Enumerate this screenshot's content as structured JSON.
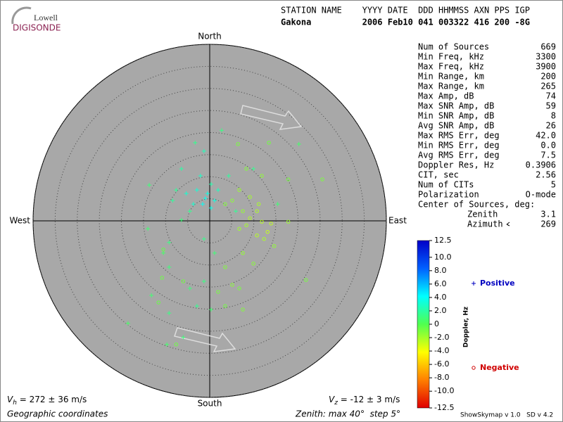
{
  "logo": {
    "top": "Lowell",
    "bottom": "DIGISONDE"
  },
  "header": {
    "line1": "STATION NAME    YYYY DATE  DDD HHMMSS AXN PPS IGP",
    "line2": "Gakona          2006 Feb10 041 003322 416 200 -8G"
  },
  "chart_data": {
    "type": "skymap",
    "directions": {
      "north": "North",
      "south": "South",
      "east": "East",
      "west": "West"
    },
    "rlim": [
      0,
      40
    ],
    "rticks": [
      5,
      10,
      15,
      20,
      25,
      30,
      35,
      40
    ],
    "colorbar": {
      "label": "Doppler, Hz",
      "lim": [
        -12.5,
        12.5
      ],
      "colormap": [
        "#e00000",
        "#ff7f00",
        "#ffff00",
        "#50ff50",
        "#00ffff",
        "#0060ff",
        "#0000c8"
      ],
      "ticks": [
        12.5,
        {
          "value": 10,
          "label": "10.0"
        },
        {
          "value": 8,
          "label": "8.0"
        },
        {
          "value": 6,
          "label": "6.0"
        },
        {
          "value": 4,
          "label": "4.0"
        },
        {
          "value": 2,
          "label": "2.0"
        },
        0,
        {
          "value": -2,
          "label": "-2.0"
        },
        {
          "value": -4,
          "label": "-4.0"
        },
        {
          "value": -6,
          "label": "-6.0"
        },
        {
          "value": -8,
          "label": "-8.0"
        },
        {
          "value": -10,
          "label": "-10.0"
        },
        -12.5
      ]
    },
    "series": [
      {
        "name": "Positive",
        "marker": "plus",
        "color": "#0000c0",
        "x": [
          2.7,
          -3.3,
          -1.3,
          -6.4,
          -13.7,
          -8.4,
          -5.3,
          -2.9,
          -0.5,
          0.3,
          -2.1,
          -4.5,
          -6.4,
          -14,
          -9.2,
          -10.5,
          -9.2,
          -13.2,
          -9.2,
          -18.5,
          -9.7,
          -6,
          -2.9,
          0.3,
          -1.3,
          -4.5,
          1.1,
          -1.3,
          4.3,
          9.9,
          20.2,
          15.4,
          5.9,
          0.3,
          -1,
          1.1,
          -1.6,
          1.9,
          -3.7,
          -7.6
        ],
        "y": [
          20.5,
          17.7,
          15.8,
          11.8,
          8.1,
          4.6,
          6.2,
          7,
          6.2,
          8.3,
          10.2,
          2.2,
          0.2,
          -1.8,
          -4.9,
          -7.3,
          -10.5,
          -16.9,
          -20.9,
          -23.2,
          -28,
          -26.4,
          -19.3,
          -20.1,
          -13.7,
          -15.3,
          -7.3,
          -4.1,
          10.2,
          11.8,
          17.4,
          3.8,
          2.2,
          2.9,
          5.1,
          4.6,
          3.8,
          7,
          3.8,
          7
        ],
        "doppler": [
          1.2,
          1.5,
          2.5,
          2,
          1,
          1.8,
          3,
          3.2,
          3.5,
          2.2,
          2.8,
          1.5,
          1,
          0.8,
          1.2,
          0.6,
          1,
          0.8,
          1.2,
          0.5,
          0.7,
          1,
          1.5,
          0.8,
          1.2,
          1,
          0.9,
          1.4,
          1.8,
          1.5,
          0.6,
          0.9,
          1.6,
          3.6,
          3.8,
          3.4,
          3.9,
          2.6,
          3,
          1.7
        ]
      },
      {
        "name": "Negative",
        "marker": "circle",
        "color": "#d00000",
        "x": [
          6.4,
          13.4,
          8.3,
          11.8,
          17.8,
          25.5,
          6.7,
          9.1,
          10.7,
          11.8,
          13.1,
          10.7,
          8.3,
          7.5,
          5.1,
          3.5,
          13.9,
          12.3,
          17.8,
          14.6,
          7.5,
          9.9,
          3.5,
          5.1,
          6.7,
          7.5,
          1.9,
          3.5,
          -7.6,
          -11.6,
          -6,
          -10.5,
          -10.8,
          21.8,
          9.1,
          6.7,
          11.1
        ],
        "y": [
          17.4,
          17.7,
          11.8,
          10.2,
          9.4,
          9.4,
          7,
          5.4,
          2.2,
          -0.2,
          -2.5,
          -3.3,
          -1,
          2.2,
          4.6,
          3.8,
          -0.6,
          -4.1,
          -0.2,
          -5.7,
          -7.3,
          -9.7,
          -10.5,
          -14.5,
          -15.3,
          -20.1,
          -16.1,
          -19.3,
          -28,
          -18.5,
          -13.7,
          -6.5,
          -12.9,
          -13.4,
          0.6,
          -1.8,
          3.8
        ],
        "doppler": [
          -1,
          -0.8,
          -1.2,
          -1.5,
          -0.9,
          -1,
          -1.8,
          -2,
          -2.2,
          -2.5,
          -2.8,
          -2.4,
          -2,
          -1.6,
          -1.4,
          -1.2,
          -2.6,
          -2.2,
          -1.8,
          -1.5,
          -1.6,
          -1.3,
          -1.1,
          -1.4,
          -1,
          -1.2,
          -0.9,
          -0.8,
          -0.7,
          -0.6,
          -0.8,
          -0.5,
          -0.7,
          -0.9,
          -2.3,
          -1.9,
          -2.1
        ]
      }
    ]
  },
  "stats": {
    "rows": [
      {
        "label": "Num of Sources",
        "value": "669"
      },
      {
        "label": "Min Freq, kHz",
        "value": "3300"
      },
      {
        "label": "Max Freq, kHz",
        "value": "3900"
      },
      {
        "label": "Min Range, km",
        "value": "200"
      },
      {
        "label": "Max Range, km",
        "value": "265"
      },
      {
        "label": "Max Amp, dB",
        "value": "74"
      },
      {
        "label": "Max SNR Amp, dB",
        "value": "59"
      },
      {
        "label": "Min SNR Amp, dB",
        "value": "8"
      },
      {
        "label": "Avg SNR Amp, dB",
        "value": "26"
      },
      {
        "label": "Max RMS Err, deg",
        "value": "42.0"
      },
      {
        "label": "Min RMS Err, deg",
        "value": "0.0"
      },
      {
        "label": "Avg RMS Err, deg",
        "value": "7.5"
      },
      {
        "label": "Doppler Res, Hz",
        "value": "0.3906"
      },
      {
        "label": "CIT, sec",
        "value": "2.56"
      },
      {
        "label": "Num of CITs",
        "value": "5"
      },
      {
        "label": "Polarization",
        "value": "O-mode"
      }
    ],
    "center_title": "Center of Sources, deg:",
    "zenith": {
      "label": "Zenith",
      "value": "3.1"
    },
    "azimuth": {
      "label": "Azimuth",
      "value": "269"
    }
  },
  "footer": {
    "vh_symbol": "V",
    "vh_sub": "h",
    "vh_text": " = 272 ± 36 m/s",
    "vz_symbol": "V",
    "vz_sub": "z",
    "vz_text": " = -12 ± 3 m/s",
    "coords": "Geographic coordinates",
    "zenith": "Zenith: max 40°  step 5°",
    "version": "ShowSkymap v 1.0   SD v 4.2"
  }
}
